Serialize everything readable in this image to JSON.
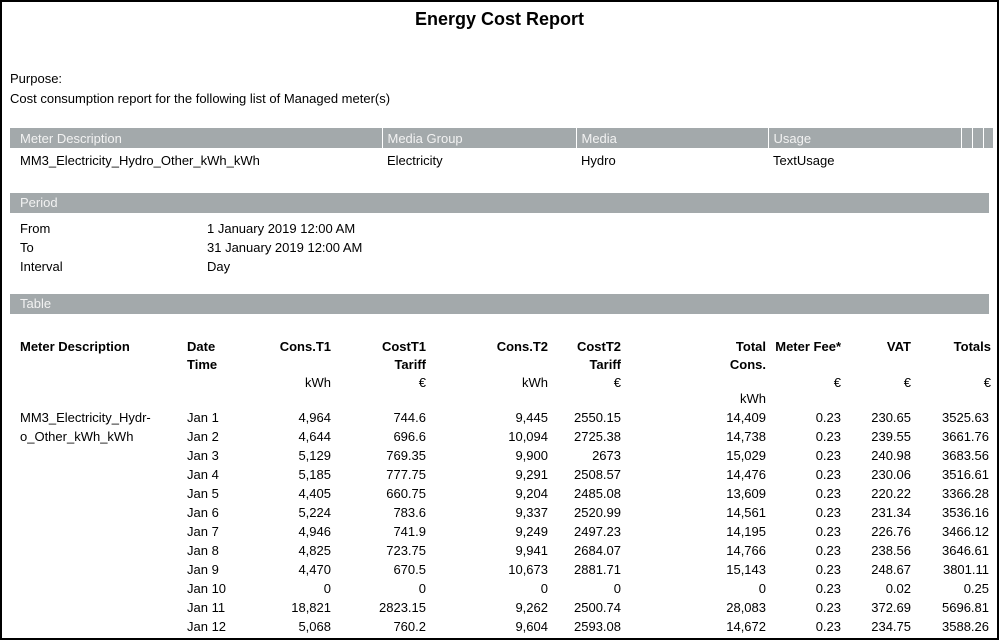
{
  "report": {
    "title": "Energy Cost Report",
    "purpose_label": "Purpose:",
    "purpose_text": "Cost consumption report for the following list of Managed meter(s)"
  },
  "colors": {
    "section_bar_bg": "#a3a9ab",
    "section_bar_text": "#f2f2f2"
  },
  "meters_table": {
    "headers": [
      "Meter Description",
      "Media Group",
      "Media",
      "Usage"
    ],
    "row": {
      "meter_description": "MM3_Electricity_Hydro_Other_kWh_kWh",
      "media_group": "Electricity",
      "media": "Hydro",
      "usage": "TextUsage"
    }
  },
  "period": {
    "section_title": "Period",
    "rows": [
      {
        "label": "From",
        "value": "1 January 2019 12:00 AM"
      },
      {
        "label": "To",
        "value": "31 January 2019 12:00 AM"
      },
      {
        "label": "Interval",
        "value": "Day"
      }
    ]
  },
  "main_table": {
    "section_title": "Table",
    "columns": [
      {
        "label": "Meter Description",
        "unit": "",
        "unit2": ""
      },
      {
        "label": "Date Time",
        "unit": "",
        "unit2": ""
      },
      {
        "label": "Cons.T1",
        "unit": "kWh",
        "unit2": ""
      },
      {
        "label": "CostT1\nTariff",
        "unit": "€",
        "unit2": ""
      },
      {
        "label": "Cons.T2",
        "unit": "kWh",
        "unit2": ""
      },
      {
        "label": "CostT2\nTariff",
        "unit": "€",
        "unit2": ""
      },
      {
        "label": "Total\nCons.",
        "unit": "",
        "unit2": "kWh"
      },
      {
        "label": "Meter Fee*",
        "unit": "€",
        "unit2": ""
      },
      {
        "label": "VAT",
        "unit": "€",
        "unit2": ""
      },
      {
        "label": "Totals",
        "unit": "€",
        "unit2": ""
      }
    ],
    "meter_description": "MM3_Electricity_Hydr-\no_Other_kWh_kWh",
    "rows": [
      [
        "Jan 1",
        "4,964",
        "744.6",
        "9,445",
        "2550.15",
        "14,409",
        "0.23",
        "230.65",
        "3525.63"
      ],
      [
        "Jan 2",
        "4,644",
        "696.6",
        "10,094",
        "2725.38",
        "14,738",
        "0.23",
        "239.55",
        "3661.76"
      ],
      [
        "Jan 3",
        "5,129",
        "769.35",
        "9,900",
        "2673",
        "15,029",
        "0.23",
        "240.98",
        "3683.56"
      ],
      [
        "Jan 4",
        "5,185",
        "777.75",
        "9,291",
        "2508.57",
        "14,476",
        "0.23",
        "230.06",
        "3516.61"
      ],
      [
        "Jan 5",
        "4,405",
        "660.75",
        "9,204",
        "2485.08",
        "13,609",
        "0.23",
        "220.22",
        "3366.28"
      ],
      [
        "Jan 6",
        "5,224",
        "783.6",
        "9,337",
        "2520.99",
        "14,561",
        "0.23",
        "231.34",
        "3536.16"
      ],
      [
        "Jan 7",
        "4,946",
        "741.9",
        "9,249",
        "2497.23",
        "14,195",
        "0.23",
        "226.76",
        "3466.12"
      ],
      [
        "Jan 8",
        "4,825",
        "723.75",
        "9,941",
        "2684.07",
        "14,766",
        "0.23",
        "238.56",
        "3646.61"
      ],
      [
        "Jan 9",
        "4,470",
        "670.5",
        "10,673",
        "2881.71",
        "15,143",
        "0.23",
        "248.67",
        "3801.11"
      ],
      [
        "Jan 10",
        "0",
        "0",
        "0",
        "0",
        "0",
        "0.23",
        "0.02",
        "0.25"
      ],
      [
        "Jan 11",
        "18,821",
        "2823.15",
        "9,262",
        "2500.74",
        "28,083",
        "0.23",
        "372.69",
        "5696.81"
      ],
      [
        "Jan 12",
        "5,068",
        "760.2",
        "9,604",
        "2593.08",
        "14,672",
        "0.23",
        "234.75",
        "3588.26"
      ]
    ]
  }
}
